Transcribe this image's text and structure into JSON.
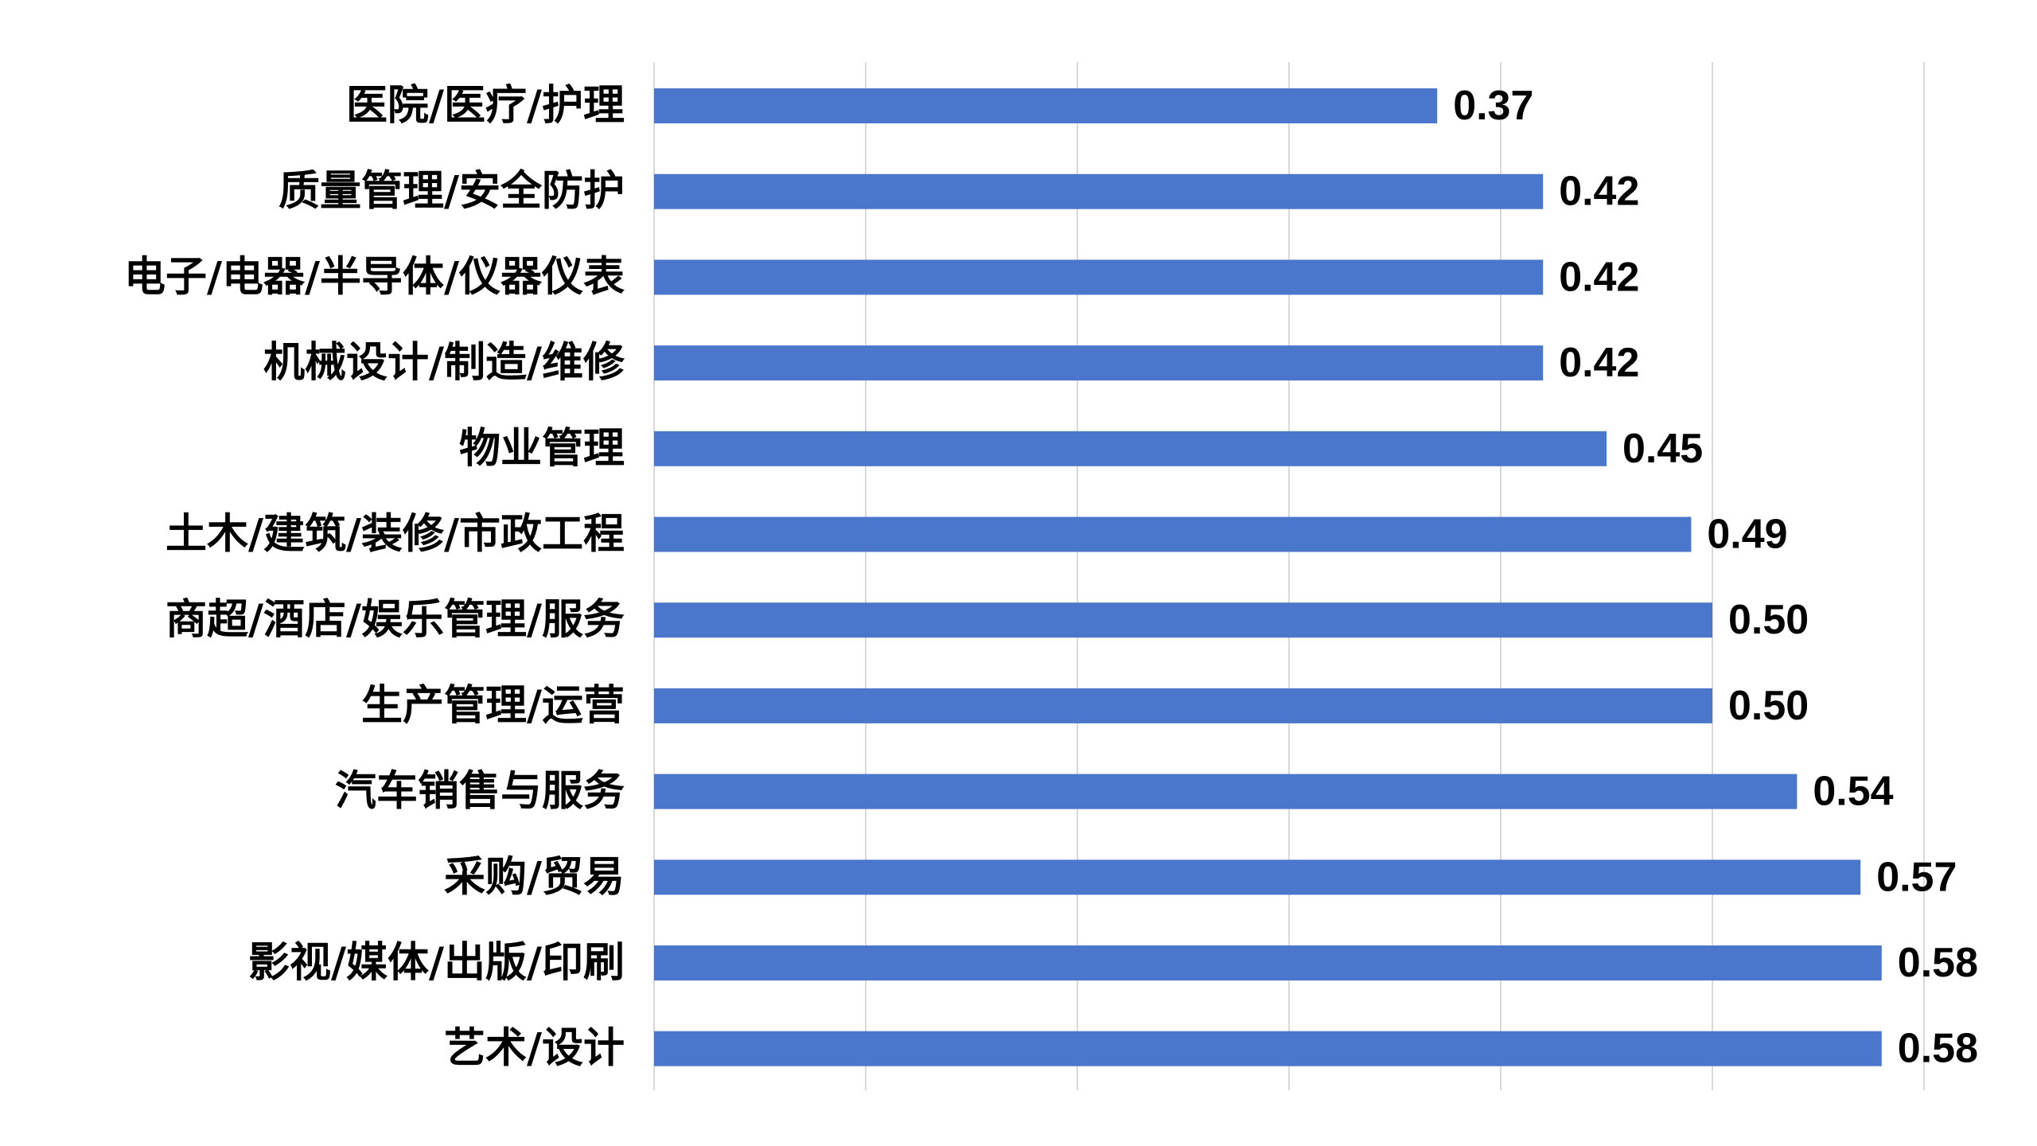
{
  "chart_data": {
    "type": "bar",
    "orientation": "horizontal",
    "categories": [
      "医院/医疗/护理",
      "质量管理/安全防护",
      "电子/电器/半导体/仪器仪表",
      "机械设计/制造/维修",
      "物业管理",
      "土木/建筑/装修/市政工程",
      "商超/酒店/娱乐管理/服务",
      "生产管理/运营",
      "汽车销售与服务",
      "采购/贸易",
      "影视/媒体/出版/印刷",
      "艺术/设计"
    ],
    "values": [
      0.37,
      0.42,
      0.42,
      0.42,
      0.45,
      0.49,
      0.5,
      0.5,
      0.54,
      0.57,
      0.58,
      0.58
    ],
    "value_labels": [
      "0.37",
      "0.42",
      "0.42",
      "0.42",
      "0.45",
      "0.49",
      "0.50",
      "0.50",
      "0.54",
      "0.57",
      "0.58",
      "0.58"
    ],
    "xlim": [
      0,
      0.6
    ],
    "x_grid_step": 0.1,
    "grid": true,
    "legend": "none",
    "bar_color": "#4a76cc",
    "title": "",
    "xlabel": "",
    "ylabel": ""
  }
}
